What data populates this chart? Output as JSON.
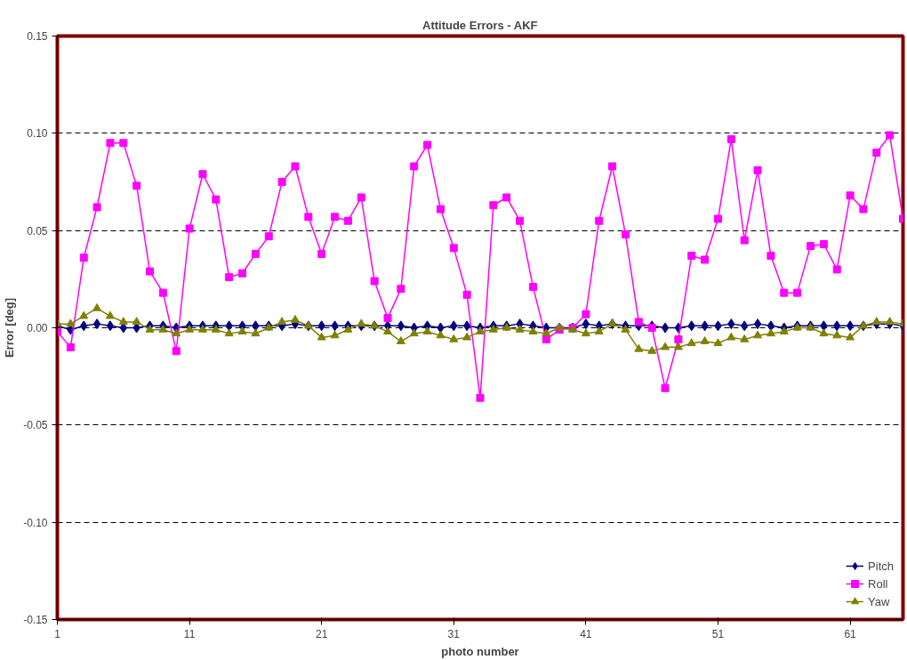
{
  "chart_data": {
    "type": "line",
    "title": "Attitude Errors - AKF",
    "xlabel": "photo number",
    "ylabel": "Error [deg]",
    "x": [
      1,
      2,
      3,
      4,
      5,
      6,
      7,
      8,
      9,
      10,
      11,
      12,
      13,
      14,
      15,
      16,
      17,
      18,
      19,
      20,
      21,
      22,
      23,
      24,
      25,
      26,
      27,
      28,
      29,
      30,
      31,
      32,
      33,
      34,
      35,
      36,
      37,
      38,
      39,
      40,
      41,
      42,
      43,
      44,
      45,
      46,
      47,
      48,
      49,
      50,
      51,
      52,
      53,
      54,
      55,
      56,
      57,
      58,
      59,
      60,
      61,
      62,
      63,
      64,
      65
    ],
    "xlim": [
      1,
      65
    ],
    "xticks": [
      1,
      11,
      21,
      31,
      41,
      51,
      61
    ],
    "ylim": [
      -0.15,
      0.15
    ],
    "yticks": [
      {
        "value": -0.15,
        "label": "-0.15"
      },
      {
        "value": -0.1,
        "label": "-0.10"
      },
      {
        "value": -0.05,
        "label": "-0.05"
      },
      {
        "value": 0,
        "label": "0.00"
      },
      {
        "value": 0.05,
        "label": "0.05"
      },
      {
        "value": 0.1,
        "label": "0.10"
      },
      {
        "value": 0.15,
        "label": "0.15"
      }
    ],
    "grid": "y",
    "legend": "bottom right",
    "line_style": "solid",
    "series": [
      {
        "name": "Pitch",
        "color": "#000080",
        "marker": "diamond",
        "values": [
          0.001,
          -0.001,
          0.001,
          0.002,
          0.001,
          0,
          0,
          0.001,
          0.001,
          0,
          0.001,
          0.001,
          0.001,
          0.001,
          0.001,
          0.001,
          0.001,
          0.001,
          0.002,
          0.001,
          0.001,
          0.001,
          0.001,
          0.001,
          0.001,
          0.001,
          0.001,
          0,
          0.001,
          0,
          0.001,
          0.001,
          0,
          0.001,
          0.001,
          0.002,
          0.001,
          0,
          0,
          0,
          0.002,
          0.001,
          0.002,
          0.001,
          0.001,
          0.001,
          0,
          0,
          0.001,
          0.001,
          0.001,
          0.002,
          0.001,
          0.002,
          0.001,
          0,
          0.001,
          0.001,
          0.001,
          0.001,
          0.001,
          0.001,
          0.002,
          0.002,
          0.001
        ]
      },
      {
        "name": "Roll",
        "color": "#ff00ff",
        "marker": "square",
        "values": [
          -0.002,
          -0.01,
          0.036,
          0.062,
          0.095,
          0.095,
          0.073,
          0.029,
          0.018,
          -0.012,
          0.051,
          0.079,
          0.066,
          0.026,
          0.028,
          0.038,
          0.047,
          0.075,
          0.083,
          0.057,
          0.038,
          0.057,
          0.055,
          0.067,
          0.024,
          0.005,
          0.02,
          0.083,
          0.094,
          0.061,
          0.041,
          0.017,
          -0.036,
          0.063,
          0.067,
          0.055,
          0.021,
          -0.006,
          -0.001,
          0.0,
          0.007,
          0.055,
          0.083,
          0.048,
          0.003,
          0.0,
          -0.031,
          -0.006,
          0.037,
          0.035,
          0.056,
          0.097,
          0.045,
          0.081,
          0.037,
          0.018,
          0.018,
          0.042,
          0.043,
          0.03,
          0.068,
          0.061,
          0.09,
          0.099,
          0.056
        ]
      },
      {
        "name": "Yaw",
        "color": "#808000",
        "marker": "triangle",
        "values": [
          0.002,
          0.002,
          0.006,
          0.01,
          0.006,
          0.003,
          0.003,
          -0.001,
          -0.001,
          -0.003,
          -0.001,
          -0.001,
          -0.001,
          -0.003,
          -0.002,
          -0.003,
          0.0,
          0.003,
          0.004,
          0.001,
          -0.005,
          -0.004,
          -0.001,
          0.002,
          0.001,
          -0.002,
          -0.007,
          -0.003,
          -0.002,
          -0.004,
          -0.006,
          -0.005,
          -0.002,
          -0.001,
          0.0,
          -0.001,
          -0.002,
          -0.003,
          0.0,
          -0.001,
          -0.003,
          -0.002,
          0.002,
          -0.001,
          -0.011,
          -0.012,
          -0.01,
          -0.01,
          -0.008,
          -0.007,
          -0.008,
          -0.005,
          -0.006,
          -0.004,
          -0.003,
          -0.002,
          0.0,
          0.0,
          -0.003,
          -0.004,
          -0.005,
          0.001,
          0.003,
          0.003,
          0.002
        ]
      }
    ]
  }
}
